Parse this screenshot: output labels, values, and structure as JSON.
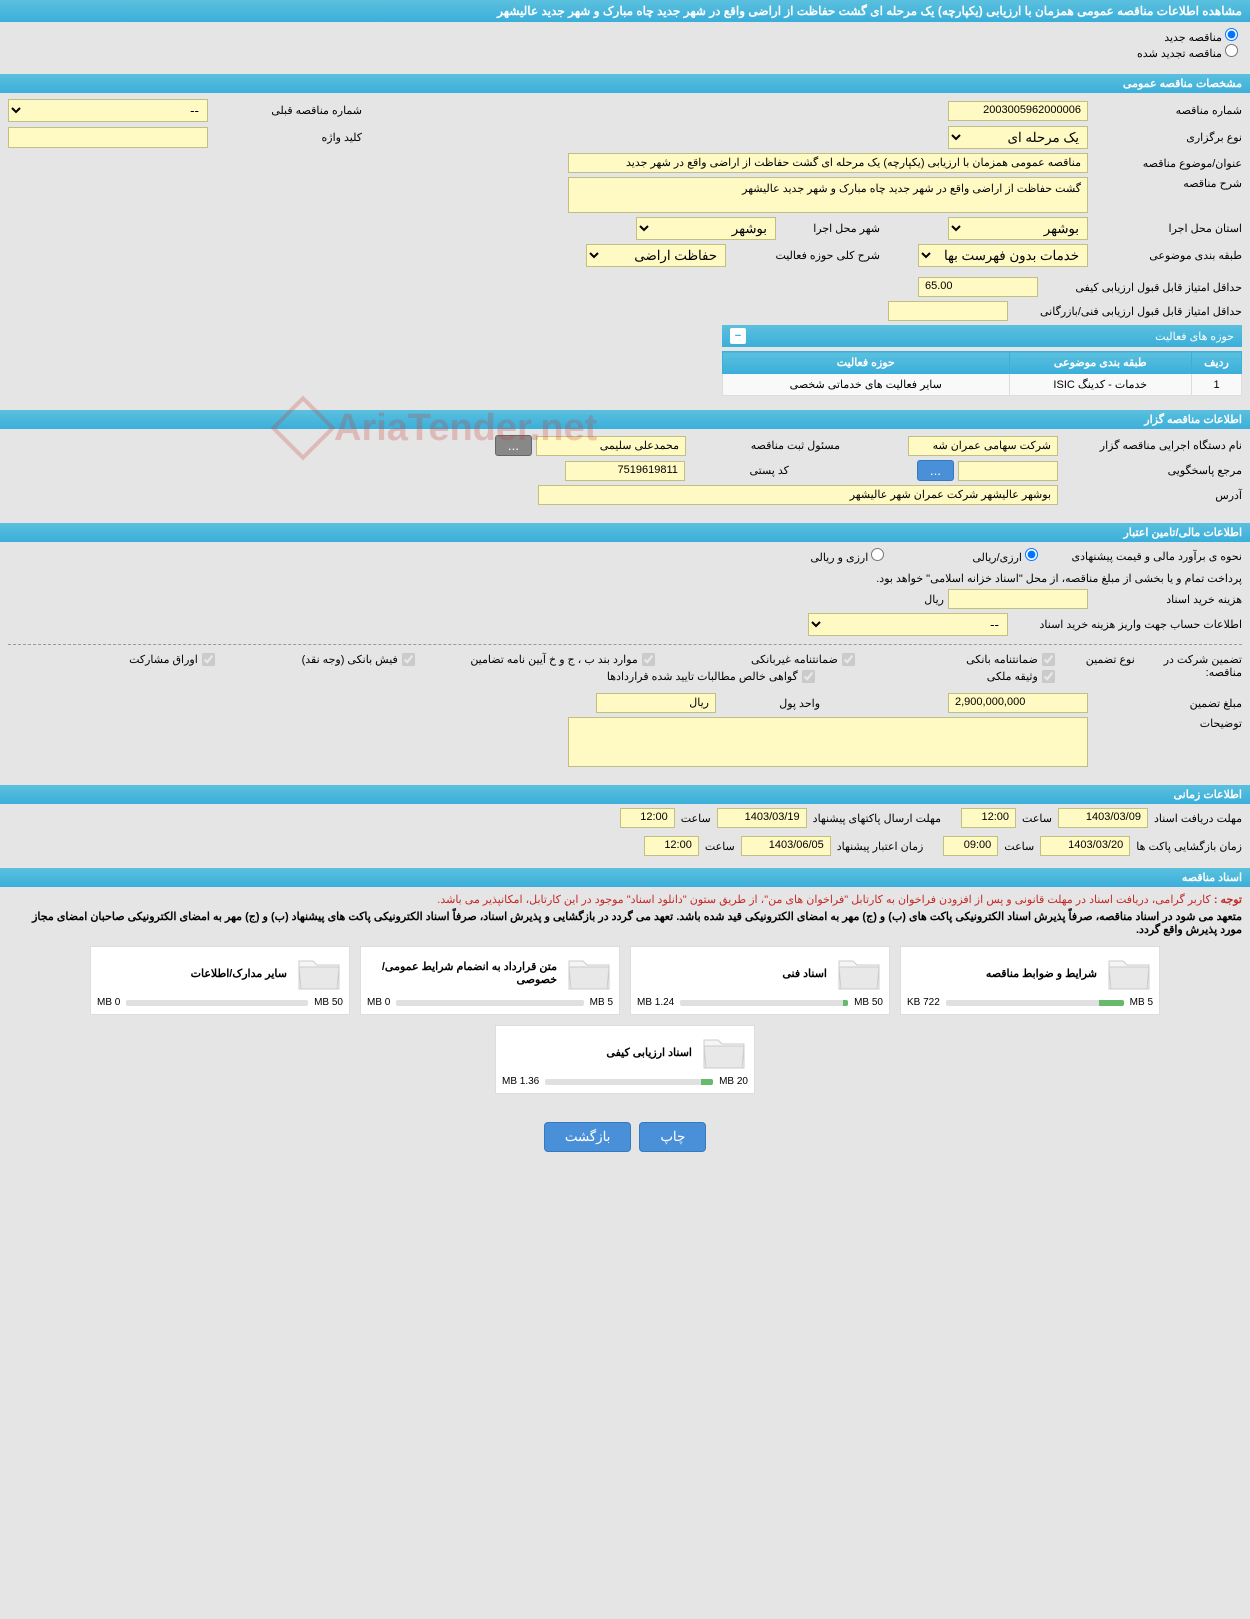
{
  "page_title": "مشاهده اطلاعات مناقصه عمومی همزمان با ارزیابی (یکپارچه) یک مرحله ای گشت حفاظت از اراضی واقع در شهر جدید چاه مبارک و شهر جدید عالیشهر",
  "radios": {
    "new_tender": "مناقصه جدید",
    "renewed_tender": "مناقصه تجدید شده"
  },
  "sections": {
    "general": "مشخصات مناقصه عمومی",
    "organizer": "اطلاعات مناقصه گزار",
    "financial": "اطلاعات مالی/تامین اعتبار",
    "timing": "اطلاعات زمانی",
    "documents": "اسناد مناقصه"
  },
  "general": {
    "tender_number_label": "شماره مناقصه",
    "tender_number": "2003005962000006",
    "prev_tender_label": "شماره مناقصه قبلی",
    "prev_tender": "--",
    "type_label": "نوع برگزاری",
    "type": "یک مرحله ای",
    "keyword_label": "کلید واژه",
    "keyword": "",
    "subject_label": "عنوان/موضوع مناقصه",
    "subject": "مناقصه عمومی همزمان با ارزیابی (یکپارچه) یک مرحله ای گشت حفاظت از اراضی واقع در شهر جدید",
    "desc_label": "شرح مناقصه",
    "desc": "گشت حفاظت از اراضی واقع در شهر جدید چاه مبارک و شهر جدید عالیشهر",
    "province_label": "استان محل اجرا",
    "province": "بوشهر",
    "city_label": "شهر محل اجرا",
    "city": "بوشهر",
    "category_label": "طبقه بندی موضوعی",
    "category": "خدمات بدون فهرست بها",
    "activity_desc_label": "شرح کلی حوزه فعالیت",
    "activity_desc": "حفاظت اراضی",
    "min_quality_score_label": "حداقل امتیاز قابل قبول ارزیابی کیفی",
    "min_quality_score": "65.00",
    "min_tech_score_label": "حداقل امتیاز قابل قبول ارزیابی فنی/بازرگانی",
    "min_tech_score": ""
  },
  "activity": {
    "header": "حوزه های فعالیت",
    "col_row": "ردیف",
    "col_category": "طبقه بندی موضوعی",
    "col_area": "حوزه فعالیت",
    "rows": [
      {
        "idx": "1",
        "category": "خدمات - کدینگ ISIC",
        "area": "سایر فعالیت های خدماتی شخصی"
      }
    ]
  },
  "organizer": {
    "org_name_label": "نام دستگاه اجرایی مناقصه گزار",
    "org_name": "شرکت سهامی عمران شه",
    "reg_officer_label": "مسئول ثبت مناقصه",
    "reg_officer": "محمدعلی سلیمی",
    "more_btn": "...",
    "responder_label": "مرجع پاسخگویی",
    "responder": "",
    "responder_btn": "...",
    "postal_label": "کد پستی",
    "postal": "7519619811",
    "address_label": "آدرس",
    "address": "بوشهر عالیشهر شرکت عمران شهر عالیشهر"
  },
  "financial": {
    "estimate_label": "نحوه ی برآورد مالی و قیمت پیشنهادی",
    "opt_rial": "ارزی/ریالی",
    "opt_currency": "ارزی و ریالی",
    "payment_note": "پرداخت تمام و یا بخشی از مبلغ مناقصه، از محل \"اسناد خزانه اسلامی\" خواهد بود.",
    "doc_cost_label": "هزینه خرید اسناد",
    "doc_cost": "",
    "doc_cost_unit": "ریال",
    "account_label": "اطلاعات حساب جهت واریز هزینه خرید اسناد",
    "account": "--",
    "guarantee_header_label": "تضمین شرکت در مناقصه:",
    "guarantee_type_label": "نوع تضمین",
    "guarantees": {
      "bank_guarantee": "ضمانتنامه بانکی",
      "nonbank_guarantee": "ضمانتنامه غیربانکی",
      "appendix": "موارد بند ب ، ج و خ آیین نامه تضامین",
      "bank_receipt": "فیش بانکی (وجه نقد)",
      "bonds": "اوراق مشارکت",
      "property": "وثیقه ملکی",
      "confirmed_receivables": "گواهی خالص مطالبات تایید شده قراردادها"
    },
    "guarantee_amount_label": "مبلغ تضمین",
    "guarantee_amount": "2,900,000,000",
    "currency_unit_label": "واحد پول",
    "currency_unit": "ریال",
    "remarks_label": "توضیحات",
    "remarks": ""
  },
  "timing": {
    "doc_deadline_label": "مهلت دریافت اسناد",
    "doc_deadline_date": "1403/03/09",
    "doc_deadline_time": "12:00",
    "send_deadline_label": "مهلت ارسال پاکتهای پیشنهاد",
    "send_deadline_date": "1403/03/19",
    "send_deadline_time": "12:00",
    "open_time_label": "زمان بازگشایی پاکت ها",
    "open_date": "1403/03/20",
    "open_time": "09:00",
    "validity_label": "زمان اعتبار پیشنهاد",
    "validity_date": "1403/06/05",
    "validity_time": "12:00",
    "hour_label": "ساعت"
  },
  "documents": {
    "note_prefix": "توجه : ",
    "note1": "کاربر گرامی، دریافت اسناد در مهلت قانونی و پس از افزودن فراخوان به کارتابل \"فراخوان های من\"، از طریق ستون \"دانلود اسناد\" موجود در این کارتابل، امکانپذیر می باشد.",
    "note2": "متعهد می شود در اسناد مناقصه، صرفاً پذیرش اسناد الکترونیکی پاکت های (ب) و (ج) مهر به امضای الکترونیکی قید شده باشد. تعهد می گردد در بازگشایی و پذیرش اسناد، صرفاً اسناد الکترونیکی پاکت های پیشنهاد (ب) و (ج) مهر به امضای الکترونیکی صاحبان امضای مجاز مورد پذیرش واقع گردد.",
    "cards": [
      {
        "title": "شرایط و ضوابط مناقصه",
        "used": "722 KB",
        "limit": "5 MB",
        "pct": 14
      },
      {
        "title": "اسناد فنی",
        "used": "1.24 MB",
        "limit": "50 MB",
        "pct": 3
      },
      {
        "title": "متن قرارداد به انضمام شرایط عمومی/خصوصی",
        "used": "0 MB",
        "limit": "5 MB",
        "pct": 0
      },
      {
        "title": "سایر مدارک/اطلاعات",
        "used": "0 MB",
        "limit": "50 MB",
        "pct": 0
      },
      {
        "title": "اسناد ارزیابی کیفی",
        "used": "1.36 MB",
        "limit": "20 MB",
        "pct": 7
      }
    ]
  },
  "buttons": {
    "print": "چاپ",
    "back": "بازگشت"
  },
  "watermark": "AriaTender.net",
  "colors": {
    "header_bg": "#3bafda",
    "yellow_bg": "#fff9c4",
    "red_text": "#c62828"
  }
}
